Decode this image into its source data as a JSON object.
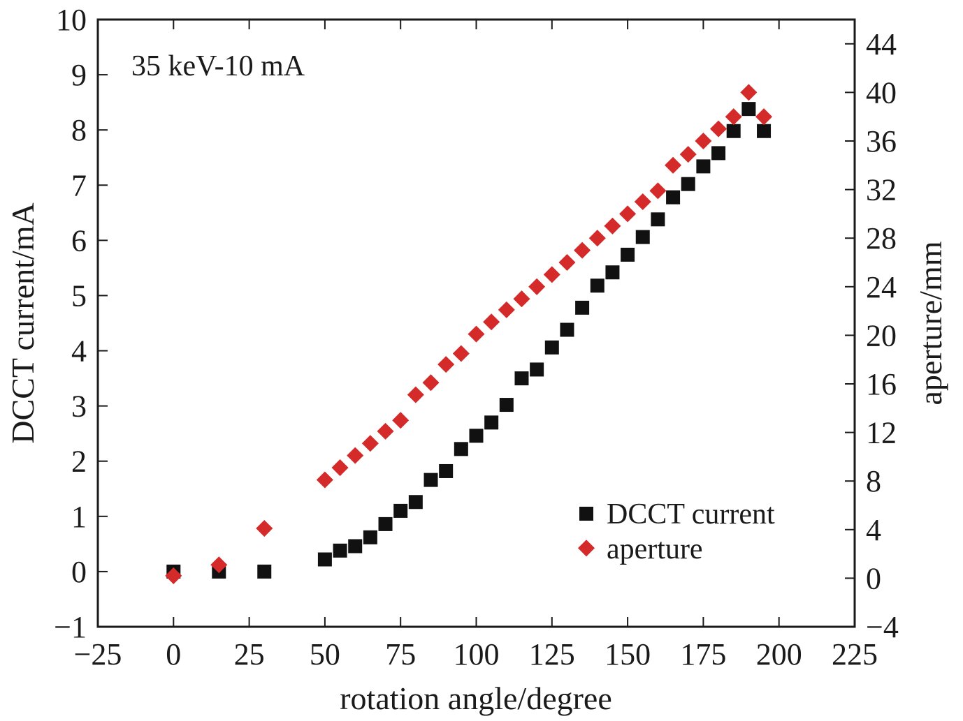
{
  "chart_data": {
    "type": "scatter",
    "title": "",
    "annotation": "35 keV-10 mA",
    "xlabel": "rotation angle/degree",
    "ylabel": "DCCT current/mA",
    "y2label": "aperture/mm",
    "xlim": [
      -25,
      225
    ],
    "ylim": [
      -1,
      10
    ],
    "y2lim": [
      -4,
      46
    ],
    "x_ticks": [
      -25,
      0,
      25,
      50,
      75,
      100,
      125,
      150,
      175,
      200,
      225
    ],
    "x_tick_labels": [
      "−25",
      "0",
      "25",
      "50",
      "75",
      "100",
      "125",
      "150",
      "175",
      "200",
      "225"
    ],
    "y_ticks": [
      -1,
      0,
      1,
      2,
      3,
      4,
      5,
      6,
      7,
      8,
      9,
      10
    ],
    "y_tick_labels": [
      "−1",
      "0",
      "1",
      "2",
      "3",
      "4",
      "5",
      "6",
      "7",
      "8",
      "9",
      "10"
    ],
    "y2_ticks": [
      -4,
      0,
      4,
      8,
      12,
      16,
      20,
      24,
      28,
      32,
      36,
      40,
      44
    ],
    "y2_tick_labels": [
      "−4",
      "0",
      "4",
      "8",
      "12",
      "16",
      "20",
      "24",
      "28",
      "32",
      "36",
      "40",
      "44"
    ],
    "grid": false,
    "legend_position": "bottom-right",
    "series": [
      {
        "name": "DCCT current",
        "axis": "left",
        "marker": "square",
        "color": "#111111",
        "x": [
          0,
          15,
          30,
          50,
          55,
          60,
          65,
          70,
          75,
          80,
          85,
          90,
          95,
          100,
          105,
          110,
          115,
          120,
          125,
          130,
          135,
          140,
          145,
          150,
          155,
          160,
          165,
          170,
          175,
          180,
          185,
          190,
          195
        ],
        "y": [
          0,
          0,
          0,
          0.22,
          0.38,
          0.46,
          0.62,
          0.86,
          1.1,
          1.26,
          1.66,
          1.82,
          2.22,
          2.46,
          2.7,
          3.02,
          3.5,
          3.66,
          4.06,
          4.38,
          4.78,
          5.18,
          5.42,
          5.74,
          6.06,
          6.38,
          6.78,
          7.02,
          7.34,
          7.58,
          7.98,
          8.38,
          7.98
        ]
      },
      {
        "name": "aperture",
        "axis": "right",
        "marker": "diamond",
        "color": "#d42a2a",
        "x": [
          0,
          15,
          30,
          50,
          55,
          60,
          65,
          70,
          75,
          80,
          85,
          90,
          95,
          100,
          105,
          110,
          115,
          120,
          125,
          130,
          135,
          140,
          145,
          150,
          155,
          160,
          165,
          170,
          175,
          180,
          185,
          190,
          195
        ],
        "y": [
          0.2,
          1.1,
          4.1,
          8.1,
          9.1,
          10.1,
          11.1,
          12.1,
          13.0,
          15.1,
          16.1,
          17.6,
          18.5,
          20.1,
          21.1,
          22.1,
          23.0,
          24.0,
          25.0,
          26.0,
          27.0,
          28.0,
          29.0,
          30.0,
          31.0,
          31.9,
          34.0,
          34.9,
          36.0,
          37.0,
          38.0,
          40.0,
          38.0
        ]
      }
    ]
  }
}
